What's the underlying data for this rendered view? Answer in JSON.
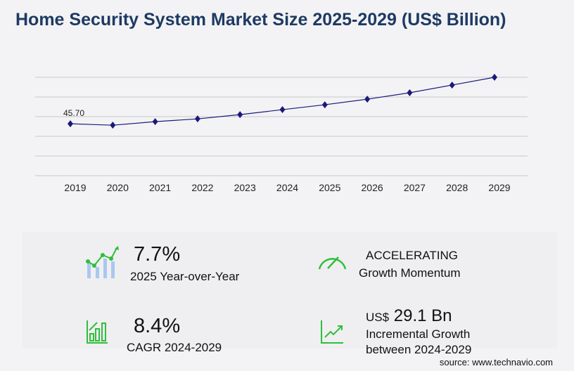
{
  "chart_data": {
    "type": "line",
    "title": "Home Security System Market Size 2025-2029 (US$ Billion)",
    "categories": [
      "2019",
      "2020",
      "2021",
      "2022",
      "2023",
      "2024",
      "2025",
      "2026",
      "2027",
      "2028",
      "2029"
    ],
    "values": [
      45.7,
      44.4,
      47.6,
      50.1,
      53.9,
      58.4,
      62.8,
      67.8,
      73.6,
      80.5,
      87.5
    ],
    "data_labels": {
      "2019": "45.70"
    },
    "ylim": [
      -1,
      87.5
    ],
    "grid": true,
    "line_color": "#1a1a7a"
  },
  "stats": [
    {
      "value": "7.7%",
      "label": "2025 Year-over-Year",
      "icon": "bar-growth-icon"
    },
    {
      "value": "ACCELERATING",
      "label": "Growth Momentum",
      "icon": "speedometer-icon"
    },
    {
      "value": "8.4%",
      "label": "CAGR 2024-2029",
      "icon": "bar-chart-icon"
    },
    {
      "prefix": "US$",
      "value": "29.1 Bn",
      "label": "Incremental Growth",
      "label2": "between 2024-2029",
      "icon": "trend-up-icon"
    }
  ],
  "source": "source: www.technavio.com",
  "colors": {
    "accent": "#2fbf3a",
    "title": "#1e3a63",
    "bars": "#a9c8f0"
  }
}
